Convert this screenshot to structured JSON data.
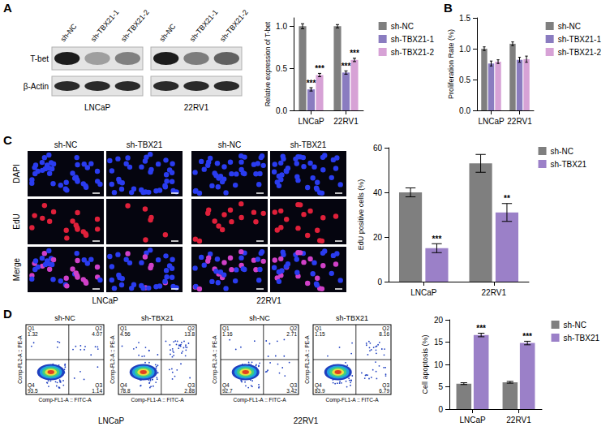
{
  "panel_letters": [
    "A",
    "B",
    "C",
    "D"
  ],
  "chart_data": [
    {
      "type": "bar",
      "categories": [
        "LNCaP",
        "22RV1"
      ],
      "y_label": "Relative expression of T-bet",
      "ylim": [
        0,
        1.1
      ],
      "yticks": [
        {
          "value": 0,
          "label": "0.0"
        },
        {
          "value": 0.5,
          "label": "0.5"
        },
        {
          "value": 1,
          "label": "1.0"
        }
      ],
      "grid": false,
      "legend": "right",
      "series": [
        {
          "name": "sh-NC",
          "color": "#7f7f7f",
          "values": [
            1.0,
            1.0
          ],
          "errors": [
            0.03,
            0.02
          ]
        },
        {
          "name": "sh-TBX21-1",
          "color": "#8a7cc0",
          "values": [
            0.25,
            0.45
          ],
          "errors": [
            0.02,
            0.02
          ],
          "annotations": [
            "***",
            "***"
          ]
        },
        {
          "name": "sh-TBX21-2",
          "color": "#d7a2d6",
          "values": [
            0.42,
            0.6
          ],
          "errors": [
            0.02,
            0.02
          ],
          "annotations": [
            "***",
            "***"
          ]
        }
      ]
    },
    {
      "type": "bar",
      "categories": [
        "LNCaP",
        "22RV1"
      ],
      "y_label": "Proliferation Rate (%)",
      "ylim": [
        0,
        1.5
      ],
      "yticks": [
        {
          "value": 0,
          "label": "0.0"
        },
        {
          "value": 0.5,
          "label": "0.5"
        },
        {
          "value": 1,
          "label": "1.0"
        },
        {
          "value": 1.5,
          "label": "1.5"
        }
      ],
      "grid": false,
      "legend": "right",
      "series": [
        {
          "name": "sh-NC",
          "color": "#7f7f7f",
          "values": [
            1.0,
            1.08
          ],
          "errors": [
            0.03,
            0.03
          ]
        },
        {
          "name": "sh-TBX21-1",
          "color": "#8a7cc0",
          "values": [
            0.76,
            0.82
          ],
          "errors": [
            0.04,
            0.04
          ]
        },
        {
          "name": "sh-TBX21-2",
          "color": "#d7a2d6",
          "values": [
            0.79,
            0.83
          ],
          "errors": [
            0.03,
            0.05
          ]
        }
      ]
    },
    {
      "type": "bar",
      "categories": [
        "LNCaP",
        "22RV1"
      ],
      "y_label": "EdU positive cells (%)",
      "ylim": [
        0,
        60
      ],
      "yticks": [
        0,
        20,
        40,
        60
      ],
      "grid": false,
      "legend": "right",
      "series": [
        {
          "name": "sh-NC",
          "color": "#7f7f7f",
          "values": [
            40,
            53
          ],
          "errors": [
            2,
            4
          ]
        },
        {
          "name": "sh-TBX21",
          "color": "#9b80c8",
          "values": [
            15,
            31
          ],
          "errors": [
            2,
            4
          ],
          "annotations": [
            "***",
            "**"
          ]
        }
      ]
    },
    {
      "type": "bar",
      "categories": [
        "LNCaP",
        "22RV1"
      ],
      "y_label": "Cell apoptosis (%)",
      "ylim": [
        0,
        20
      ],
      "yticks": [
        0,
        5,
        10,
        15,
        20
      ],
      "grid": false,
      "legend": "right",
      "series": [
        {
          "name": "sh-NC",
          "color": "#7f7f7f",
          "values": [
            5.7,
            6.0
          ],
          "errors": [
            0.2,
            0.2
          ]
        },
        {
          "name": "sh-TBX21",
          "color": "#9b80c8",
          "values": [
            16.6,
            14.8
          ],
          "errors": [
            0.4,
            0.4
          ],
          "annotations": [
            "***",
            "***"
          ]
        }
      ]
    }
  ],
  "western_blot": {
    "lanes": [
      "sh-NC",
      "sh-TBX21-1",
      "sh-TBX21-2"
    ],
    "proteins": [
      "T-bet",
      "β-Actin"
    ],
    "cell_lines": [
      "LNCaP",
      "22RV1"
    ]
  },
  "edu_imaging": {
    "channels": [
      "DAPI",
      "EdU",
      "Merge"
    ],
    "groups": [
      "sh-NC",
      "sh-TBX21"
    ],
    "cell_lines": [
      "LNCaP",
      "22RV1"
    ]
  },
  "flow_cytometry": {
    "x_label": "Comp-FL1-A :: FITC-A",
    "y_label": "Comp-FL2-A :: PE-A",
    "panels": [
      {
        "cell_line": "LNCaP",
        "plots": [
          {
            "group": "sh-NC",
            "quadrants": [
              {
                "label": "Q1",
                "value": 1.32
              },
              {
                "label": "Q2",
                "value": 4.07
              },
              {
                "label": "Q3",
                "value": 1.14
              },
              {
                "label": "Q4",
                "value": 93.5
              }
            ]
          },
          {
            "group": "sh-TBX21",
            "quadrants": [
              {
                "label": "Q1",
                "value": 4.56
              },
              {
                "label": "Q2",
                "value": 13.8
              },
              {
                "label": "Q3",
                "value": 2.88
              },
              {
                "label": "Q4",
                "value": 78.8
              }
            ]
          }
        ]
      },
      {
        "cell_line": "22RV1",
        "plots": [
          {
            "group": "sh-NC",
            "quadrants": [
              {
                "label": "Q1",
                "value": 1.16
              },
              {
                "label": "Q2",
                "value": 2.71
              },
              {
                "label": "Q3",
                "value": 3.42
              },
              {
                "label": "Q4",
                "value": 92.7
              }
            ]
          },
          {
            "group": "sh-TBX21",
            "quadrants": [
              {
                "label": "Q1",
                "value": 1.15
              },
              {
                "label": "Q2",
                "value": 8.16
              },
              {
                "label": "Q3",
                "value": 6.79
              },
              {
                "label": "Q4",
                "value": 83.9
              }
            ]
          }
        ]
      }
    ]
  }
}
